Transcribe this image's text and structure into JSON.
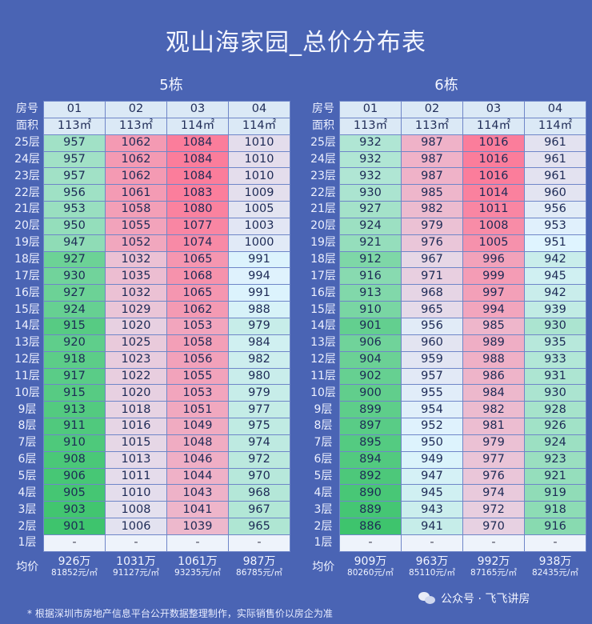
{
  "title": "观山海家园_总价分布表",
  "buildings": [
    {
      "name": "5栋",
      "units": [
        "01",
        "02",
        "03",
        "04"
      ],
      "areas": [
        "113㎡",
        "113㎡",
        "114㎡",
        "114㎡"
      ],
      "floors": [
        "25层",
        "24层",
        "23层",
        "22层",
        "21层",
        "20层",
        "19层",
        "18层",
        "17层",
        "16层",
        "15层",
        "14层",
        "13层",
        "12层",
        "11层",
        "10层",
        "9层",
        "8层",
        "7层",
        "6层",
        "5层",
        "4层",
        "3层",
        "2层",
        "1层"
      ],
      "prices": [
        [
          957,
          1062,
          1084,
          1010
        ],
        [
          957,
          1062,
          1084,
          1010
        ],
        [
          957,
          1062,
          1084,
          1010
        ],
        [
          956,
          1061,
          1083,
          1009
        ],
        [
          953,
          1058,
          1080,
          1005
        ],
        [
          950,
          1055,
          1077,
          1003
        ],
        [
          947,
          1052,
          1074,
          1000
        ],
        [
          927,
          1032,
          1065,
          991
        ],
        [
          930,
          1035,
          1068,
          994
        ],
        [
          927,
          1032,
          1065,
          991
        ],
        [
          924,
          1029,
          1062,
          988
        ],
        [
          915,
          1020,
          1053,
          979
        ],
        [
          920,
          1025,
          1058,
          984
        ],
        [
          918,
          1023,
          1056,
          982
        ],
        [
          917,
          1022,
          1055,
          980
        ],
        [
          915,
          1020,
          1053,
          979
        ],
        [
          913,
          1018,
          1051,
          977
        ],
        [
          911,
          1016,
          1049,
          975
        ],
        [
          910,
          1015,
          1048,
          974
        ],
        [
          908,
          1013,
          1046,
          972
        ],
        [
          906,
          1011,
          1044,
          970
        ],
        [
          905,
          1010,
          1043,
          968
        ],
        [
          903,
          1008,
          1041,
          967
        ],
        [
          901,
          1006,
          1039,
          965
        ],
        [
          "-",
          "-",
          "-",
          "-"
        ]
      ],
      "avg_total": [
        "926万",
        "1031万",
        "1061万",
        "987万"
      ],
      "avg_unit": [
        "81852元/㎡",
        "91127元/㎡",
        "93235元/㎡",
        "86785元/㎡"
      ]
    },
    {
      "name": "6栋",
      "units": [
        "01",
        "02",
        "03",
        "04"
      ],
      "areas": [
        "113㎡",
        "113㎡",
        "114㎡",
        "114㎡"
      ],
      "floors": [
        "25层",
        "24层",
        "23层",
        "22层",
        "21层",
        "20层",
        "19层",
        "18层",
        "17层",
        "16层",
        "15层",
        "14层",
        "13层",
        "12层",
        "11层",
        "10层",
        "9层",
        "8层",
        "7层",
        "6层",
        "5层",
        "4层",
        "3层",
        "2层",
        "1层"
      ],
      "prices": [
        [
          932,
          987,
          1016,
          961
        ],
        [
          932,
          987,
          1016,
          961
        ],
        [
          932,
          987,
          1016,
          961
        ],
        [
          930,
          985,
          1014,
          960
        ],
        [
          927,
          982,
          1011,
          956
        ],
        [
          924,
          979,
          1008,
          953
        ],
        [
          921,
          976,
          1005,
          951
        ],
        [
          912,
          967,
          996,
          942
        ],
        [
          916,
          971,
          999,
          945
        ],
        [
          913,
          968,
          997,
          942
        ],
        [
          910,
          965,
          994,
          939
        ],
        [
          901,
          956,
          985,
          930
        ],
        [
          906,
          960,
          989,
          935
        ],
        [
          904,
          959,
          988,
          933
        ],
        [
          902,
          957,
          986,
          931
        ],
        [
          900,
          955,
          984,
          930
        ],
        [
          899,
          954,
          982,
          928
        ],
        [
          897,
          952,
          981,
          926
        ],
        [
          895,
          950,
          979,
          924
        ],
        [
          894,
          949,
          977,
          923
        ],
        [
          892,
          947,
          976,
          921
        ],
        [
          890,
          945,
          974,
          919
        ],
        [
          889,
          943,
          972,
          918
        ],
        [
          886,
          941,
          970,
          916
        ],
        [
          "-",
          "-",
          "-",
          "-"
        ]
      ],
      "avg_total": [
        "909万",
        "963万",
        "992万",
        "938万"
      ],
      "avg_unit": [
        "80260元/㎡",
        "85110元/㎡",
        "87165元/㎡",
        "82435元/㎡"
      ]
    }
  ],
  "labels": {
    "room": "房号",
    "area": "面积",
    "average": "均价"
  },
  "footnote": "* 根据深圳市房地产信息平台公开数据整理制作，实际销售价以房企为准",
  "watermark": {
    "text": "公众号 · 飞飞讲房",
    "icon": "wechat-icon"
  },
  "colors": {
    "background": "#4a64b4",
    "low": "#3ec46d",
    "mid": "#dff4ff",
    "high": "#fb7d9b"
  }
}
